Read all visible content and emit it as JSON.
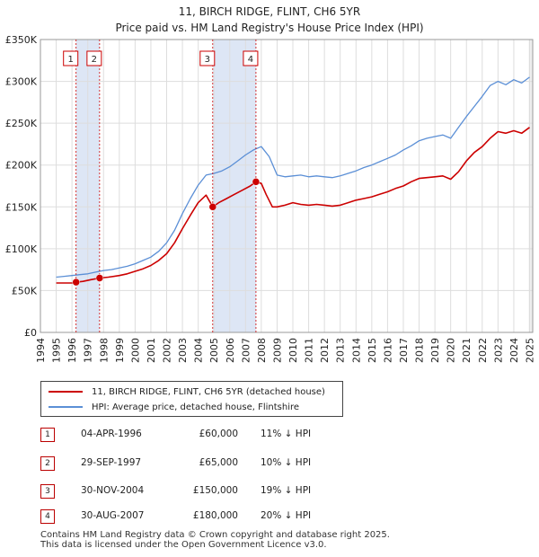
{
  "title_line1": "11, BIRCH RIDGE, FLINT, CH6 5YR",
  "title_line2": "Price paid vs. HM Land Registry's House Price Index (HPI)",
  "colors": {
    "property": "#cc0000",
    "hpi": "#5b8fd6",
    "band": "#dde6f5",
    "marker_border": "#cc0000"
  },
  "chart_data": {
    "type": "line",
    "title": "11, BIRCH RIDGE, FLINT, CH6 5YR — Price paid vs. HM Land Registry's House Price Index (HPI)",
    "xlabel": "",
    "ylabel": "",
    "xlim": [
      1994,
      2025.2
    ],
    "ylim": [
      0,
      350000
    ],
    "x_ticks": [
      "1994",
      "1995",
      "1996",
      "1997",
      "1998",
      "1999",
      "2000",
      "2001",
      "2002",
      "2003",
      "2004",
      "2005",
      "2006",
      "2007",
      "2008",
      "2009",
      "2010",
      "2011",
      "2012",
      "2013",
      "2014",
      "2015",
      "2016",
      "2017",
      "2018",
      "2019",
      "2020",
      "2021",
      "2022",
      "2023",
      "2024",
      "2025"
    ],
    "y_ticks": [
      {
        "value": 0,
        "label": "£0"
      },
      {
        "value": 50000,
        "label": "£50K"
      },
      {
        "value": 100000,
        "label": "£100K"
      },
      {
        "value": 150000,
        "label": "£150K"
      },
      {
        "value": 200000,
        "label": "£200K"
      },
      {
        "value": 250000,
        "label": "£250K"
      },
      {
        "value": 300000,
        "label": "£300K"
      },
      {
        "value": 350000,
        "label": "£350K"
      }
    ],
    "grid": true,
    "series": [
      {
        "name": "11, BIRCH RIDGE, FLINT, CH6 5YR (detached house)",
        "color": "#cc0000",
        "x": [
          1995.0,
          1995.5,
          1996.0,
          1996.26,
          1996.7,
          1997.2,
          1997.75,
          1998.3,
          1999.0,
          1999.5,
          2000.0,
          2000.5,
          2001.0,
          2001.5,
          2002.0,
          2002.5,
          2003.0,
          2003.5,
          2004.0,
          2004.5,
          2004.92,
          2005.3,
          2005.8,
          2006.3,
          2006.8,
          2007.3,
          2007.66,
          2008.0,
          2008.3,
          2008.7,
          2009.0,
          2009.5,
          2010.0,
          2010.5,
          2011.0,
          2011.5,
          2012.0,
          2012.5,
          2013.0,
          2013.5,
          2014.0,
          2014.5,
          2015.0,
          2015.5,
          2016.0,
          2016.5,
          2017.0,
          2017.5,
          2018.0,
          2018.5,
          2019.0,
          2019.5,
          2020.0,
          2020.5,
          2021.0,
          2021.5,
          2022.0,
          2022.5,
          2023.0,
          2023.5,
          2024.0,
          2024.5,
          2025.0
        ],
        "values": [
          59000,
          59000,
          59000,
          60000,
          61000,
          63000,
          65000,
          66000,
          68000,
          70000,
          73000,
          76000,
          80000,
          86000,
          94000,
          107000,
          124000,
          140000,
          155000,
          164000,
          150000,
          155000,
          160000,
          165000,
          170000,
          175000,
          180000,
          178000,
          165000,
          150000,
          150000,
          152000,
          155000,
          153000,
          152000,
          153000,
          152000,
          151000,
          152000,
          155000,
          158000,
          160000,
          162000,
          165000,
          168000,
          172000,
          175000,
          180000,
          184000,
          185000,
          186000,
          187000,
          183000,
          192000,
          205000,
          215000,
          222000,
          232000,
          240000,
          238000,
          241000,
          238000,
          245000
        ]
      },
      {
        "name": "HPI: Average price, detached house, Flintshire",
        "color": "#5b8fd6",
        "x": [
          1995.0,
          1995.5,
          1996.0,
          1996.5,
          1997.0,
          1997.5,
          1998.0,
          1998.5,
          1999.0,
          1999.5,
          2000.0,
          2000.5,
          2001.0,
          2001.5,
          2002.0,
          2002.5,
          2003.0,
          2003.5,
          2004.0,
          2004.5,
          2005.0,
          2005.5,
          2006.0,
          2006.5,
          2007.0,
          2007.5,
          2008.0,
          2008.5,
          2009.0,
          2009.5,
          2010.0,
          2010.5,
          2011.0,
          2011.5,
          2012.0,
          2012.5,
          2013.0,
          2013.5,
          2014.0,
          2014.5,
          2015.0,
          2015.5,
          2016.0,
          2016.5,
          2017.0,
          2017.5,
          2018.0,
          2018.5,
          2019.0,
          2019.5,
          2020.0,
          2020.5,
          2021.0,
          2021.5,
          2022.0,
          2022.5,
          2023.0,
          2023.5,
          2024.0,
          2024.5,
          2025.0
        ],
        "values": [
          66000,
          67000,
          68000,
          69000,
          70000,
          72000,
          74000,
          75000,
          77000,
          79000,
          82000,
          86000,
          90000,
          97000,
          107000,
          122000,
          142000,
          160000,
          176000,
          188000,
          190000,
          193000,
          198000,
          205000,
          212000,
          218000,
          222000,
          210000,
          188000,
          186000,
          187000,
          188000,
          186000,
          187000,
          186000,
          185000,
          187000,
          190000,
          193000,
          197000,
          200000,
          204000,
          208000,
          212000,
          218000,
          223000,
          229000,
          232000,
          234000,
          236000,
          232000,
          245000,
          258000,
          270000,
          282000,
          295000,
          300000,
          296000,
          302000,
          298000,
          305000
        ]
      }
    ],
    "transactions": [
      {
        "marker": "1",
        "date": "04-APR-1996",
        "x": 1996.26,
        "price": 60000,
        "price_label": "£60,000",
        "hpi": "11% ↓ HPI"
      },
      {
        "marker": "2",
        "date": "29-SEP-1997",
        "x": 1997.75,
        "price": 65000,
        "price_label": "£65,000",
        "hpi": "10% ↓ HPI"
      },
      {
        "marker": "3",
        "date": "30-NOV-2004",
        "x": 2004.92,
        "price": 150000,
        "price_label": "£150,000",
        "hpi": "19% ↓ HPI"
      },
      {
        "marker": "4",
        "date": "30-AUG-2007",
        "x": 2007.66,
        "price": 180000,
        "price_label": "£180,000",
        "hpi": "20% ↓ HPI"
      }
    ],
    "legend_position": "below"
  },
  "legend": {
    "property_label": "11, BIRCH RIDGE, FLINT, CH6 5YR (detached house)",
    "hpi_label": "HPI: Average price, detached house, Flintshire"
  },
  "footer": {
    "line1": "Contains HM Land Registry data © Crown copyright and database right 2025.",
    "line2": "This data is licensed under the Open Government Licence v3.0."
  }
}
